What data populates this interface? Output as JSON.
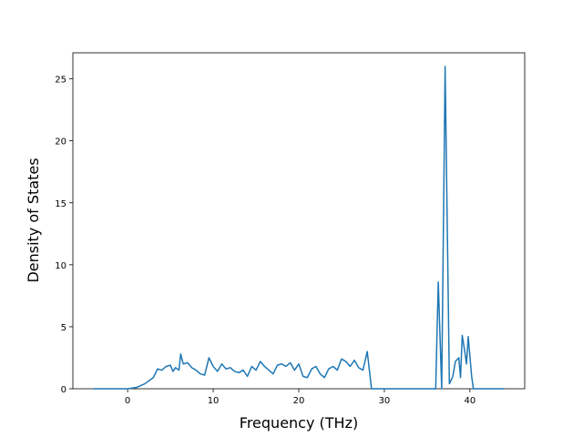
{
  "chart_data": {
    "type": "line",
    "x_label": "Frequency (THz)",
    "y_label": "Density of States",
    "x": [
      -4,
      0,
      1,
      2,
      3,
      3.5,
      4,
      4.5,
      5,
      5.3,
      5.6,
      6,
      6.2,
      6.5,
      7,
      7.5,
      8,
      8.5,
      9,
      9.5,
      10,
      10.5,
      11,
      11.5,
      12,
      12.5,
      13,
      13.5,
      14,
      14.5,
      15,
      15.5,
      16,
      16.5,
      17,
      17.5,
      18,
      18.5,
      19,
      19.5,
      20,
      20.5,
      21,
      21.5,
      22,
      22.5,
      23,
      23.5,
      24,
      24.5,
      25,
      25.5,
      26,
      26.5,
      27,
      27.5,
      28,
      28.5,
      36,
      36.3,
      36.7,
      37.1,
      37.6,
      38,
      38.3,
      38.7,
      38.9,
      39.1,
      39.4,
      39.6,
      39.8,
      40.2,
      40.4,
      44
    ],
    "values": [
      0,
      0,
      0.1,
      0.4,
      0.9,
      1.6,
      1.5,
      1.8,
      1.9,
      1.4,
      1.7,
      1.5,
      2.8,
      2.0,
      2.1,
      1.7,
      1.5,
      1.2,
      1.1,
      2.5,
      1.8,
      1.4,
      2.0,
      1.6,
      1.7,
      1.4,
      1.3,
      1.5,
      1.0,
      1.8,
      1.5,
      2.2,
      1.8,
      1.5,
      1.2,
      1.9,
      2.0,
      1.8,
      2.1,
      1.5,
      2.0,
      1.0,
      0.9,
      1.6,
      1.8,
      1.2,
      0.9,
      1.6,
      1.8,
      1.5,
      2.4,
      2.2,
      1.8,
      2.3,
      1.7,
      1.5,
      3.0,
      0,
      0,
      8.6,
      0,
      26,
      0.4,
      1.0,
      2.2,
      2.5,
      0.9,
      4.3,
      3.0,
      2.0,
      4.2,
      1.0,
      0,
      0
    ],
    "color": "#1f77b4",
    "xlim": [
      -6.4,
      46.4
    ],
    "xticks": [
      0,
      10,
      20,
      30,
      40
    ],
    "ylim": [
      0,
      27.1
    ],
    "yticks": [
      0,
      5,
      10,
      15,
      20,
      25
    ]
  }
}
